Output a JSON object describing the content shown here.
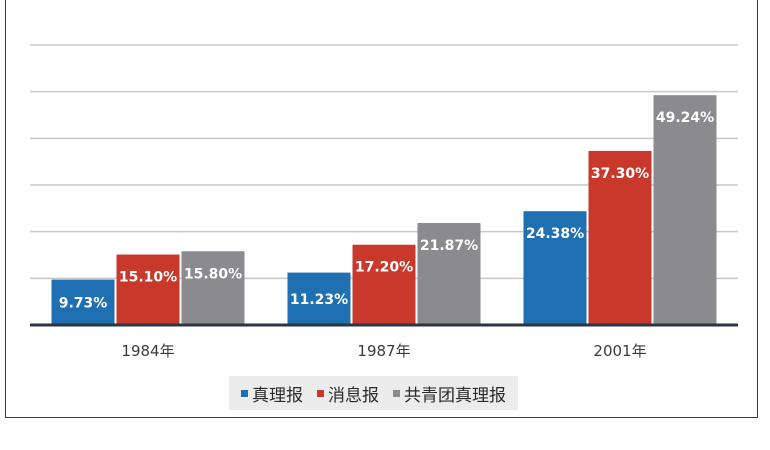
{
  "chart_data": {
    "type": "bar",
    "title": "",
    "xlabel": "",
    "ylabel": "",
    "ylim": [
      0,
      60
    ],
    "grid": true,
    "legend_position": "bottom",
    "categories": [
      "1984年",
      "1987年",
      "2001年"
    ],
    "series": [
      {
        "name": "真理报",
        "color": "#1f6fb3",
        "values": [
          9.73,
          11.23,
          24.38
        ],
        "labels": [
          "9.73%",
          "11.23%",
          "24.38%"
        ]
      },
      {
        "name": "消息报",
        "color": "#c9392b",
        "values": [
          15.1,
          17.2,
          37.3
        ],
        "labels": [
          "15.10%",
          "17.20%",
          "37.30%"
        ]
      },
      {
        "name": "共青团真理报",
        "color": "#8a8a8f",
        "values": [
          15.8,
          21.87,
          49.24
        ],
        "labels": [
          "15.80%",
          "21.87%",
          "49.24%"
        ]
      }
    ]
  }
}
